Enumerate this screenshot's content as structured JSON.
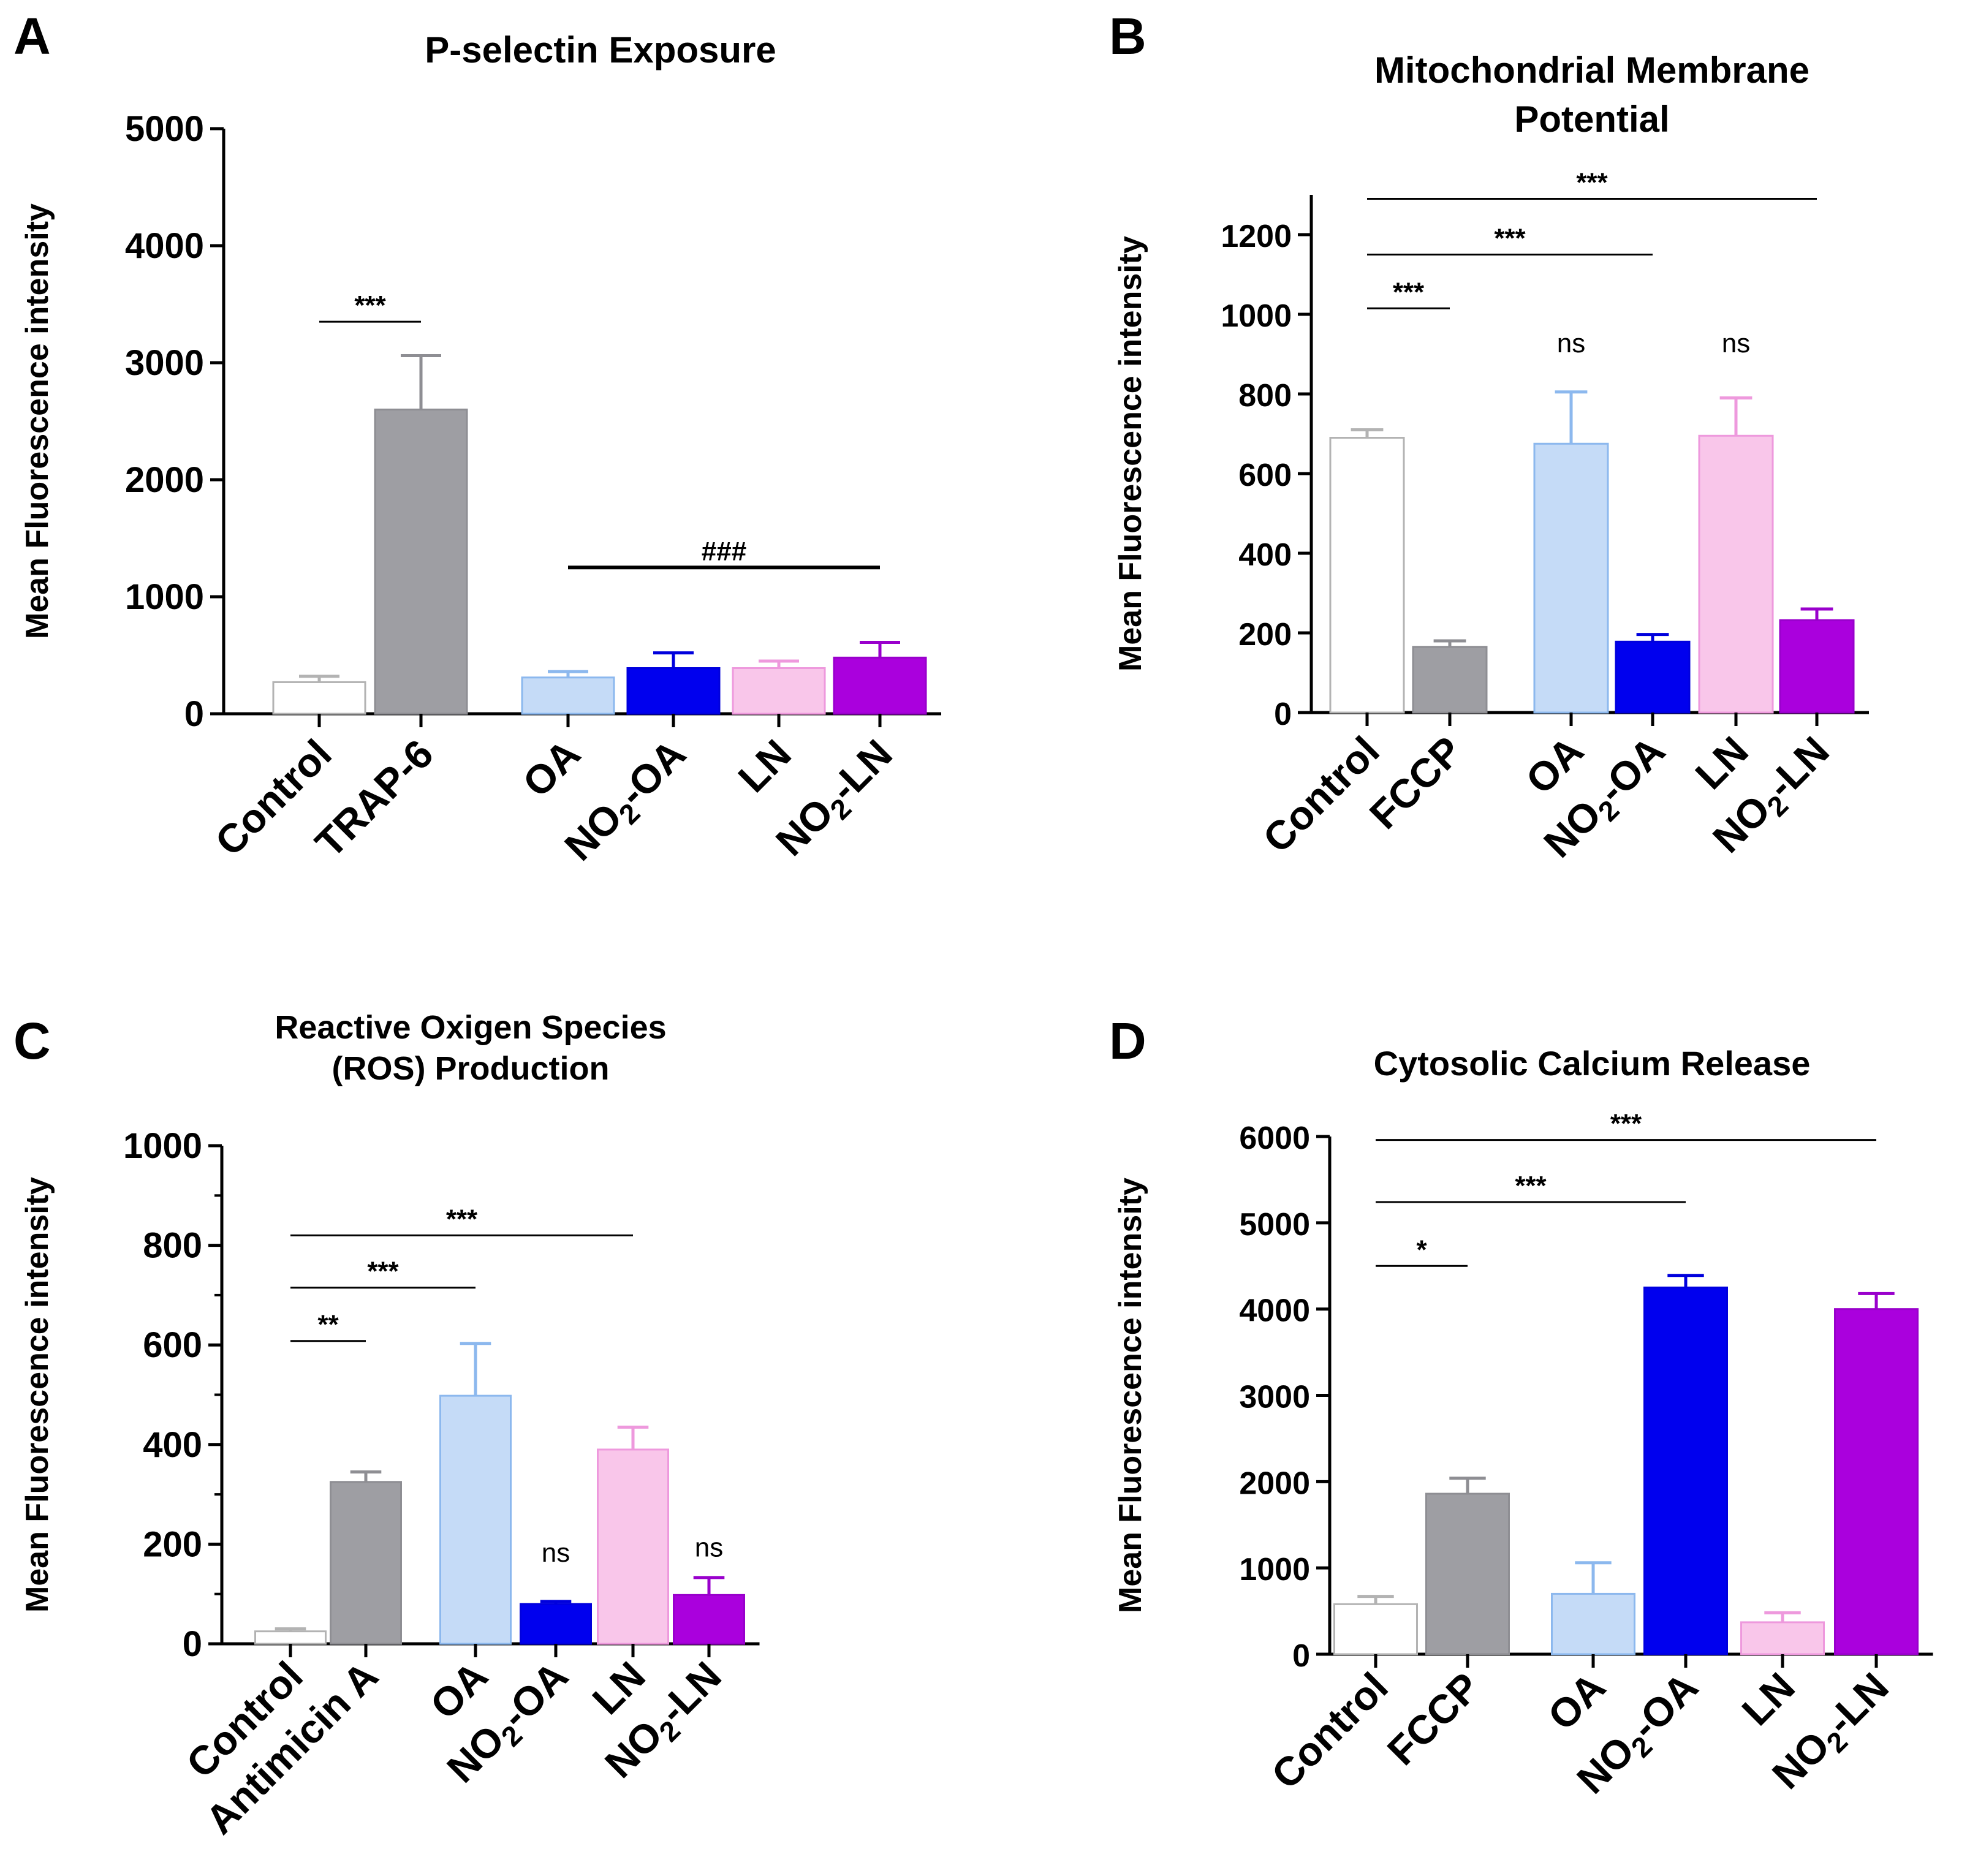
{
  "figure": {
    "panels": [
      {
        "id": "A",
        "letter": "A",
        "title_lines": [
          "P-selectin Exposure"
        ]
      },
      {
        "id": "B",
        "letter": "B",
        "title_lines": [
          "Mitochondrial Membrane",
          "Potential"
        ]
      },
      {
        "id": "C",
        "letter": "C",
        "title_lines": [
          "Reactive Oxigen Species",
          "(ROS) Production"
        ]
      },
      {
        "id": "D",
        "letter": "D",
        "title_lines": [
          "Cytosolic Calcium Release"
        ]
      }
    ]
  },
  "chart_data": [
    {
      "panel": "A",
      "type": "bar",
      "title": "P-selectin Exposure",
      "ylabel": "Mean Fluorescence intensity",
      "ylim": [
        0,
        5000
      ],
      "yticks": [
        0,
        1000,
        2000,
        3000,
        4000,
        5000
      ],
      "minor_ticks": false,
      "categories": [
        {
          "label": "Control",
          "sub": "",
          "suffix": ""
        },
        {
          "label": "TRAP-6",
          "sub": "",
          "suffix": ""
        },
        {
          "label": "OA",
          "sub": "",
          "suffix": ""
        },
        {
          "label": "NO",
          "sub": "2",
          "suffix": "-OA"
        },
        {
          "label": "LN",
          "sub": "",
          "suffix": ""
        },
        {
          "label": "NO",
          "sub": "2",
          "suffix": "-LN"
        }
      ],
      "values": [
        270,
        2600,
        310,
        390,
        390,
        480
      ],
      "errors": [
        50,
        460,
        50,
        130,
        60,
        130
      ],
      "fill_colors": [
        "#ffffff",
        "#9e9ea3",
        "#c5dbf7",
        "#0000ee",
        "#f9c6ea",
        "#aa00dd"
      ],
      "edge_colors": [
        "#b3b3b3",
        "#8e8e93",
        "#8cb8ee",
        "#0000dd",
        "#ee99dd",
        "#9900cc"
      ],
      "annotations": [
        {
          "from": 0,
          "to": 1,
          "y": 3350,
          "text": "***",
          "thick": false
        },
        {
          "from": 2,
          "to": 5,
          "y": 1250,
          "text": "###",
          "thick": true
        }
      ],
      "ns_marks": []
    },
    {
      "panel": "B",
      "type": "bar",
      "title": "Mitochondrial Membrane Potential",
      "ylabel": "Mean Fluorescence intensity",
      "ylim": [
        0,
        1300
      ],
      "yticks": [
        0,
        200,
        400,
        600,
        800,
        1000,
        1200
      ],
      "minor_ticks": false,
      "categories": [
        {
          "label": "Control",
          "sub": "",
          "suffix": ""
        },
        {
          "label": "FCCP",
          "sub": "",
          "suffix": ""
        },
        {
          "label": "OA",
          "sub": "",
          "suffix": ""
        },
        {
          "label": "NO",
          "sub": "2",
          "suffix": "-OA"
        },
        {
          "label": "LN",
          "sub": "",
          "suffix": ""
        },
        {
          "label": "NO",
          "sub": "2",
          "suffix": "-LN"
        }
      ],
      "values": [
        690,
        165,
        675,
        178,
        695,
        232
      ],
      "errors": [
        20,
        15,
        130,
        18,
        95,
        28
      ],
      "fill_colors": [
        "#ffffff",
        "#9e9ea3",
        "#c5dbf7",
        "#0000ee",
        "#f9c6ea",
        "#aa00dd"
      ],
      "edge_colors": [
        "#b3b3b3",
        "#8e8e93",
        "#8cb8ee",
        "#0000dd",
        "#ee99dd",
        "#9900cc"
      ],
      "annotations": [
        {
          "from": 0,
          "to": 5,
          "y": 1290,
          "text": "***",
          "thick": false
        },
        {
          "from": 0,
          "to": 3,
          "y": 1150,
          "text": "***",
          "thick": false
        },
        {
          "from": 0,
          "to": 1,
          "y": 1015,
          "text": "***",
          "thick": false
        }
      ],
      "ns_marks": [
        {
          "index": 2,
          "y": 905,
          "text": "ns"
        },
        {
          "index": 4,
          "y": 905,
          "text": "ns"
        }
      ]
    },
    {
      "panel": "C",
      "type": "bar",
      "title": "Reactive Oxigen Species (ROS) Production",
      "ylabel": "Mean Fluorescence intensity",
      "ylim": [
        0,
        1000
      ],
      "yticks": [
        0,
        200,
        400,
        600,
        800,
        1000
      ],
      "minor_ticks": true,
      "categories": [
        {
          "label": "Control",
          "sub": "",
          "suffix": ""
        },
        {
          "label": "Antimicin A",
          "sub": "",
          "suffix": ""
        },
        {
          "label": "OA",
          "sub": "",
          "suffix": ""
        },
        {
          "label": "NO",
          "sub": "2",
          "suffix": "-OA"
        },
        {
          "label": "LN",
          "sub": "",
          "suffix": ""
        },
        {
          "label": "NO",
          "sub": "2",
          "suffix": "-LN"
        }
      ],
      "values": [
        25,
        325,
        498,
        80,
        390,
        98
      ],
      "errors": [
        5,
        20,
        105,
        5,
        45,
        35
      ],
      "fill_colors": [
        "#ffffff",
        "#9e9ea3",
        "#c5dbf7",
        "#0000ee",
        "#f9c6ea",
        "#aa00dd"
      ],
      "edge_colors": [
        "#b3b3b3",
        "#8e8e93",
        "#8cb8ee",
        "#0000dd",
        "#ee99dd",
        "#9900cc"
      ],
      "annotations": [
        {
          "from": 0,
          "to": 4,
          "y": 820,
          "text": "***",
          "thick": false
        },
        {
          "from": 0,
          "to": 2,
          "y": 715,
          "text": "***",
          "thick": false
        },
        {
          "from": 0,
          "to": 1,
          "y": 608,
          "text": "**",
          "thick": false
        }
      ],
      "ns_marks": [
        {
          "index": 3,
          "y": 165,
          "text": "ns"
        },
        {
          "index": 5,
          "y": 175,
          "text": "ns"
        }
      ]
    },
    {
      "panel": "D",
      "type": "bar",
      "title": "Cytosolic Calcium Release",
      "ylabel": "Mean Fluorescence intensity",
      "ylim": [
        0,
        6000
      ],
      "yticks": [
        0,
        1000,
        2000,
        3000,
        4000,
        5000,
        6000
      ],
      "minor_ticks": false,
      "categories": [
        {
          "label": "Control",
          "sub": "",
          "suffix": ""
        },
        {
          "label": "FCCP",
          "sub": "",
          "suffix": ""
        },
        {
          "label": "OA",
          "sub": "",
          "suffix": ""
        },
        {
          "label": "NO",
          "sub": "2",
          "suffix": "-OA"
        },
        {
          "label": "LN",
          "sub": "",
          "suffix": ""
        },
        {
          "label": "NO",
          "sub": "2",
          "suffix": "-LN"
        }
      ],
      "values": [
        580,
        1860,
        700,
        4250,
        370,
        4000
      ],
      "errors": [
        90,
        180,
        360,
        140,
        110,
        180
      ],
      "fill_colors": [
        "#ffffff",
        "#9e9ea3",
        "#c5dbf7",
        "#0000ee",
        "#f9c6ea",
        "#aa00dd"
      ],
      "edge_colors": [
        "#b3b3b3",
        "#8e8e93",
        "#8cb8ee",
        "#0000dd",
        "#ee99dd",
        "#9900cc"
      ],
      "annotations": [
        {
          "from": 0,
          "to": 5,
          "y": 5960,
          "text": "***",
          "thick": false
        },
        {
          "from": 0,
          "to": 3,
          "y": 5240,
          "text": "***",
          "thick": false
        },
        {
          "from": 0,
          "to": 1,
          "y": 4500,
          "text": "*",
          "thick": false
        }
      ],
      "ns_marks": []
    }
  ]
}
